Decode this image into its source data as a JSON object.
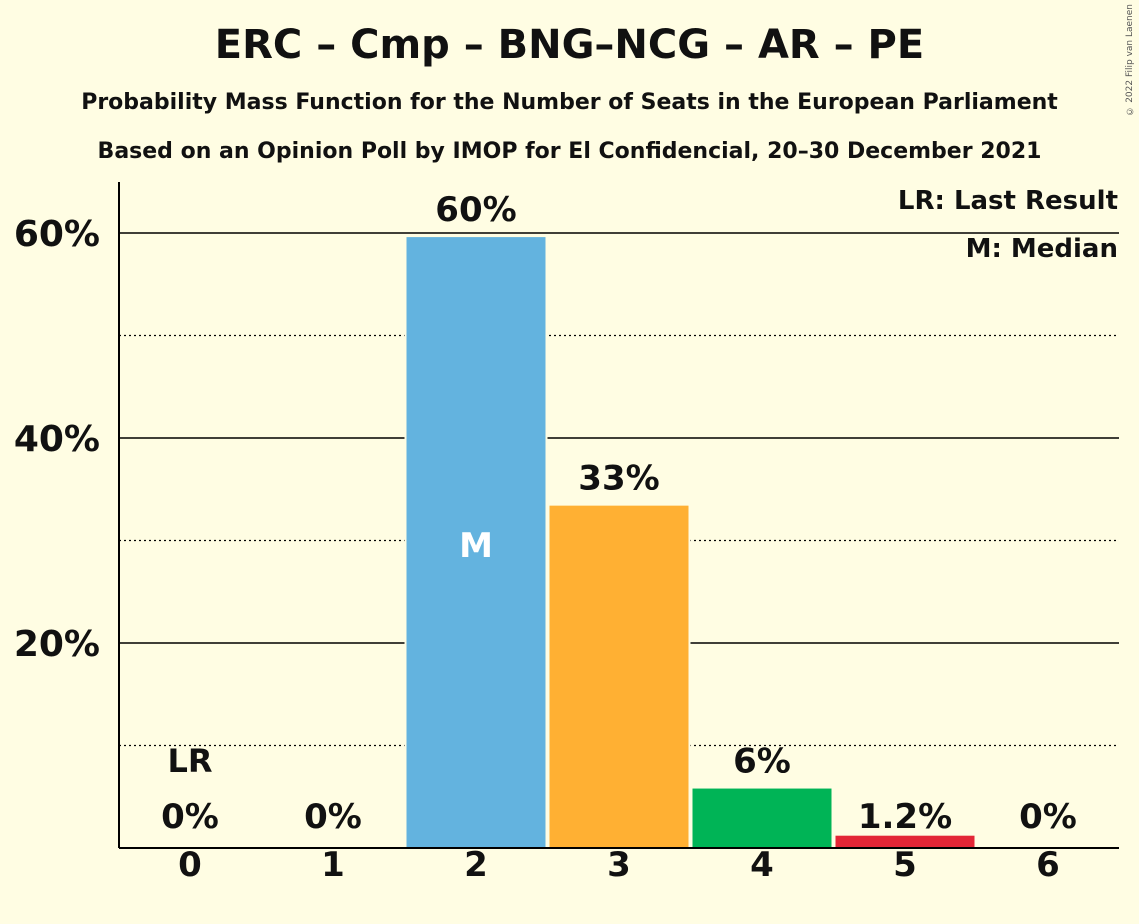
{
  "title": "ERC – Cmp – BNG–NCG – AR – PE",
  "subtitle1": "Probability Mass Function for the Number of Seats in the European Parliament",
  "subtitle2": "Based on an Opinion Poll by IMOP for El Confidencial, 20–30 December 2021",
  "copyright": "© 2022 Filip van Laenen",
  "legend": {
    "last_result": "LR: Last Result",
    "median": "M: Median"
  },
  "chart_data": {
    "type": "bar",
    "categories": [
      "0",
      "1",
      "2",
      "3",
      "4",
      "5",
      "6"
    ],
    "values": [
      0,
      0,
      59.6,
      33.4,
      5.8,
      1.2,
      0
    ],
    "value_labels": [
      "0%",
      "0%",
      "60%",
      "33%",
      "6%",
      "1.2%",
      "0%"
    ],
    "bar_colors": [
      "#63B3DF",
      "#63B3DF",
      "#63B3DF",
      "#FFB033",
      "#00B456",
      "#E32636",
      "#63B3DF"
    ],
    "ylim": [
      0,
      65
    ],
    "yticks": [
      20,
      40,
      60
    ],
    "ytick_labels": [
      "20%",
      "40%",
      "60%"
    ],
    "minor_gridlines": [
      10,
      30,
      50
    ],
    "last_result_index": 0,
    "last_result_label": "LR",
    "median_index": 2,
    "median_label": "M",
    "legend_position": "top-right",
    "xlabel": "",
    "ylabel": ""
  }
}
